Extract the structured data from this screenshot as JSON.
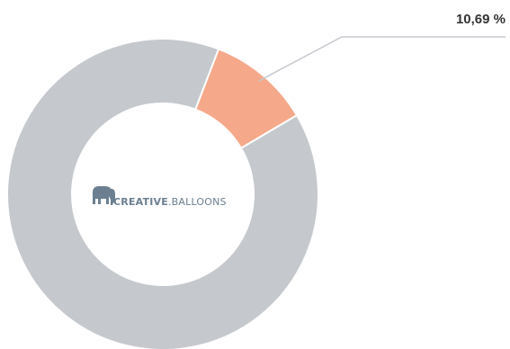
{
  "chart_data": {
    "type": "pie",
    "donut": true,
    "slices": [
      {
        "value": 10.69,
        "label": "10,69 %",
        "color": "#f5a98a"
      },
      {
        "value": 89.31,
        "color": "#c5c8cd"
      }
    ],
    "grid": false,
    "legend": "none"
  },
  "center_logo": {
    "name": "creative-balloons-logo",
    "icon": "elephant-icon",
    "word_a": "CREATIVE",
    "separator": ".",
    "word_b": "BALLOONS",
    "color": "#6b7f90"
  }
}
